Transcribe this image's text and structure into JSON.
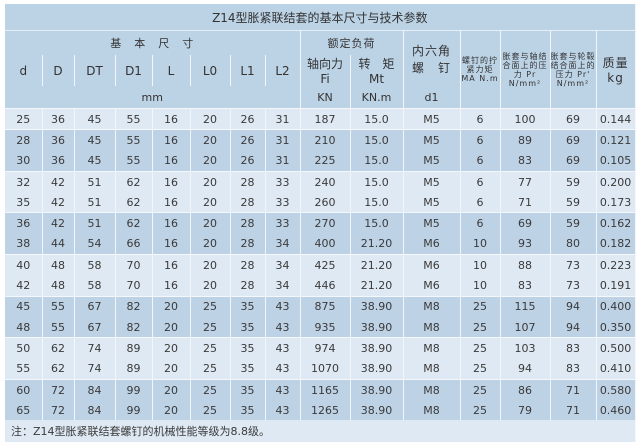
{
  "title": "Z14型胀紧联结套的基本尺寸与技术参数",
  "header": {
    "basic_dims": "基　本　尺　寸",
    "rated_load": "额定负荷",
    "hex_screw": "内六角\n螺　钉",
    "screw_torque": "螺钉的拧紧力矩 MA N.m",
    "pressure_shaft": "胀套与轴结合面上的压力 Pr N/mm²",
    "pressure_hub": "胀套与轮毂结合面上的压力 Pr' N/mm²",
    "mass": "质量 kg",
    "cols": [
      "d",
      "D",
      "DT",
      "D1",
      "L",
      "L0",
      "L1",
      "L2"
    ],
    "axial_force": "轴向力 Fi",
    "torque": "转　矩 Mt",
    "mm": "mm",
    "kn": "KN",
    "knm": "KN.m",
    "d1": "d1"
  },
  "rows": [
    [
      "25",
      "36",
      "45",
      "55",
      "16",
      "20",
      "26",
      "31",
      "187",
      "15.0",
      "M5",
      "6",
      "100",
      "69",
      "0.144"
    ],
    [
      "28",
      "36",
      "45",
      "55",
      "16",
      "20",
      "26",
      "31",
      "210",
      "15.0",
      "M5",
      "6",
      "89",
      "69",
      "0.121"
    ],
    [
      "30",
      "36",
      "45",
      "55",
      "16",
      "20",
      "26",
      "31",
      "225",
      "15.0",
      "M5",
      "6",
      "83",
      "69",
      "0.105"
    ],
    [
      "32",
      "42",
      "51",
      "62",
      "16",
      "20",
      "28",
      "33",
      "240",
      "15.0",
      "M5",
      "6",
      "77",
      "59",
      "0.200"
    ],
    [
      "35",
      "42",
      "51",
      "62",
      "16",
      "20",
      "28",
      "33",
      "260",
      "15.0",
      "M5",
      "6",
      "71",
      "59",
      "0.173"
    ],
    [
      "36",
      "42",
      "51",
      "62",
      "16",
      "20",
      "28",
      "33",
      "270",
      "15.0",
      "M5",
      "6",
      "69",
      "59",
      "0.162"
    ],
    [
      "38",
      "44",
      "54",
      "66",
      "16",
      "20",
      "28",
      "34",
      "400",
      "21.20",
      "M6",
      "10",
      "93",
      "80",
      "0.182"
    ],
    [
      "40",
      "48",
      "58",
      "70",
      "16",
      "20",
      "28",
      "34",
      "425",
      "21.20",
      "M6",
      "10",
      "88",
      "73",
      "0.223"
    ],
    [
      "42",
      "48",
      "58",
      "70",
      "16",
      "20",
      "28",
      "34",
      "446",
      "21.20",
      "M6",
      "10",
      "83",
      "73",
      "0.191"
    ],
    [
      "45",
      "55",
      "67",
      "82",
      "20",
      "25",
      "35",
      "43",
      "875",
      "38.90",
      "M8",
      "25",
      "115",
      "94",
      "0.400"
    ],
    [
      "48",
      "55",
      "67",
      "82",
      "20",
      "25",
      "35",
      "43",
      "935",
      "38.90",
      "M8",
      "25",
      "107",
      "94",
      "0.350"
    ],
    [
      "50",
      "62",
      "74",
      "89",
      "20",
      "25",
      "35",
      "43",
      "974",
      "38.90",
      "M8",
      "25",
      "103",
      "83",
      "0.500"
    ],
    [
      "55",
      "62",
      "74",
      "89",
      "20",
      "25",
      "35",
      "43",
      "1070",
      "38.90",
      "M8",
      "25",
      "94",
      "83",
      "0.410"
    ],
    [
      "60",
      "72",
      "84",
      "99",
      "20",
      "25",
      "35",
      "43",
      "1165",
      "38.90",
      "M8",
      "25",
      "86",
      "71",
      "0.580"
    ],
    [
      "65",
      "72",
      "84",
      "99",
      "20",
      "25",
      "35",
      "43",
      "1265",
      "38.90",
      "M8",
      "25",
      "79",
      "71",
      "0.460"
    ]
  ],
  "note": "注：Z14型胀紧联结套螺钉的机械性能等级为8.8级。",
  "colors": {
    "header": "#bcd2e5",
    "light": "#dfe9f3",
    "dark": "#bed2e6"
  }
}
